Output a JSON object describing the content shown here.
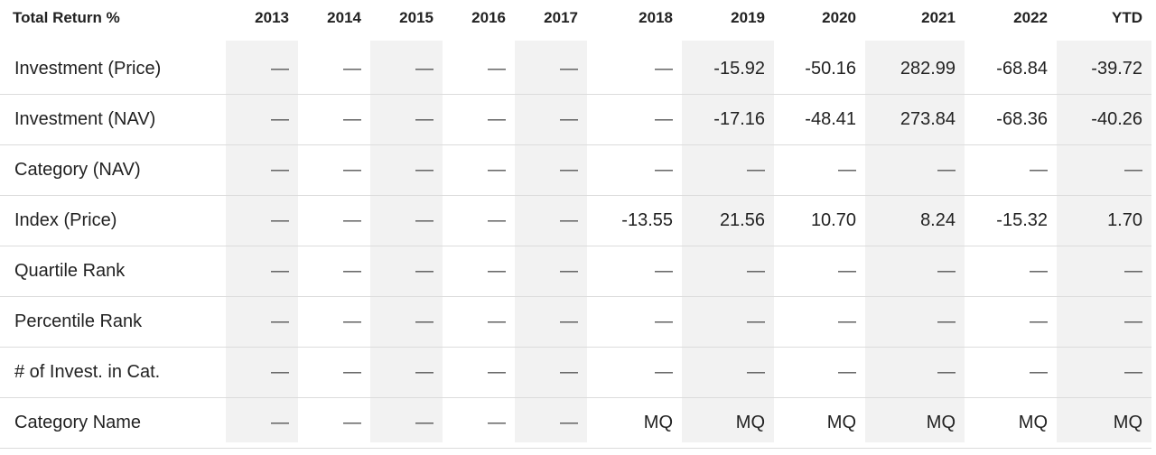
{
  "table": {
    "header": [
      "Total Return %",
      "2013",
      "2014",
      "2015",
      "2016",
      "2017",
      "2018",
      "2019",
      "2020",
      "2021",
      "2022",
      "YTD"
    ],
    "rows": [
      [
        "Investment (Price)",
        "—",
        "—",
        "—",
        "—",
        "—",
        "—",
        "-15.92",
        "-50.16",
        "282.99",
        "-68.84",
        "-39.72"
      ],
      [
        "Investment (NAV)",
        "—",
        "—",
        "—",
        "—",
        "—",
        "—",
        "-17.16",
        "-48.41",
        "273.84",
        "-68.36",
        "-40.26"
      ],
      [
        "Category (NAV)",
        "—",
        "—",
        "—",
        "—",
        "—",
        "—",
        "—",
        "—",
        "—",
        "—",
        "—"
      ],
      [
        "Index (Price)",
        "—",
        "—",
        "—",
        "—",
        "—",
        "-13.55",
        "21.56",
        "10.70",
        "8.24",
        "-15.32",
        "1.70"
      ],
      [
        "Quartile Rank",
        "—",
        "—",
        "—",
        "—",
        "—",
        "—",
        "—",
        "—",
        "—",
        "—",
        "—"
      ],
      [
        "Percentile Rank",
        "—",
        "—",
        "—",
        "—",
        "—",
        "—",
        "—",
        "—",
        "—",
        "—",
        "—"
      ],
      [
        "# of Invest. in Cat.",
        "—",
        "—",
        "—",
        "—",
        "—",
        "—",
        "—",
        "—",
        "—",
        "—",
        "—"
      ],
      [
        "Category Name",
        "—",
        "—",
        "—",
        "—",
        "—",
        "MQ",
        "MQ",
        "MQ",
        "MQ",
        "MQ",
        "MQ"
      ]
    ]
  }
}
